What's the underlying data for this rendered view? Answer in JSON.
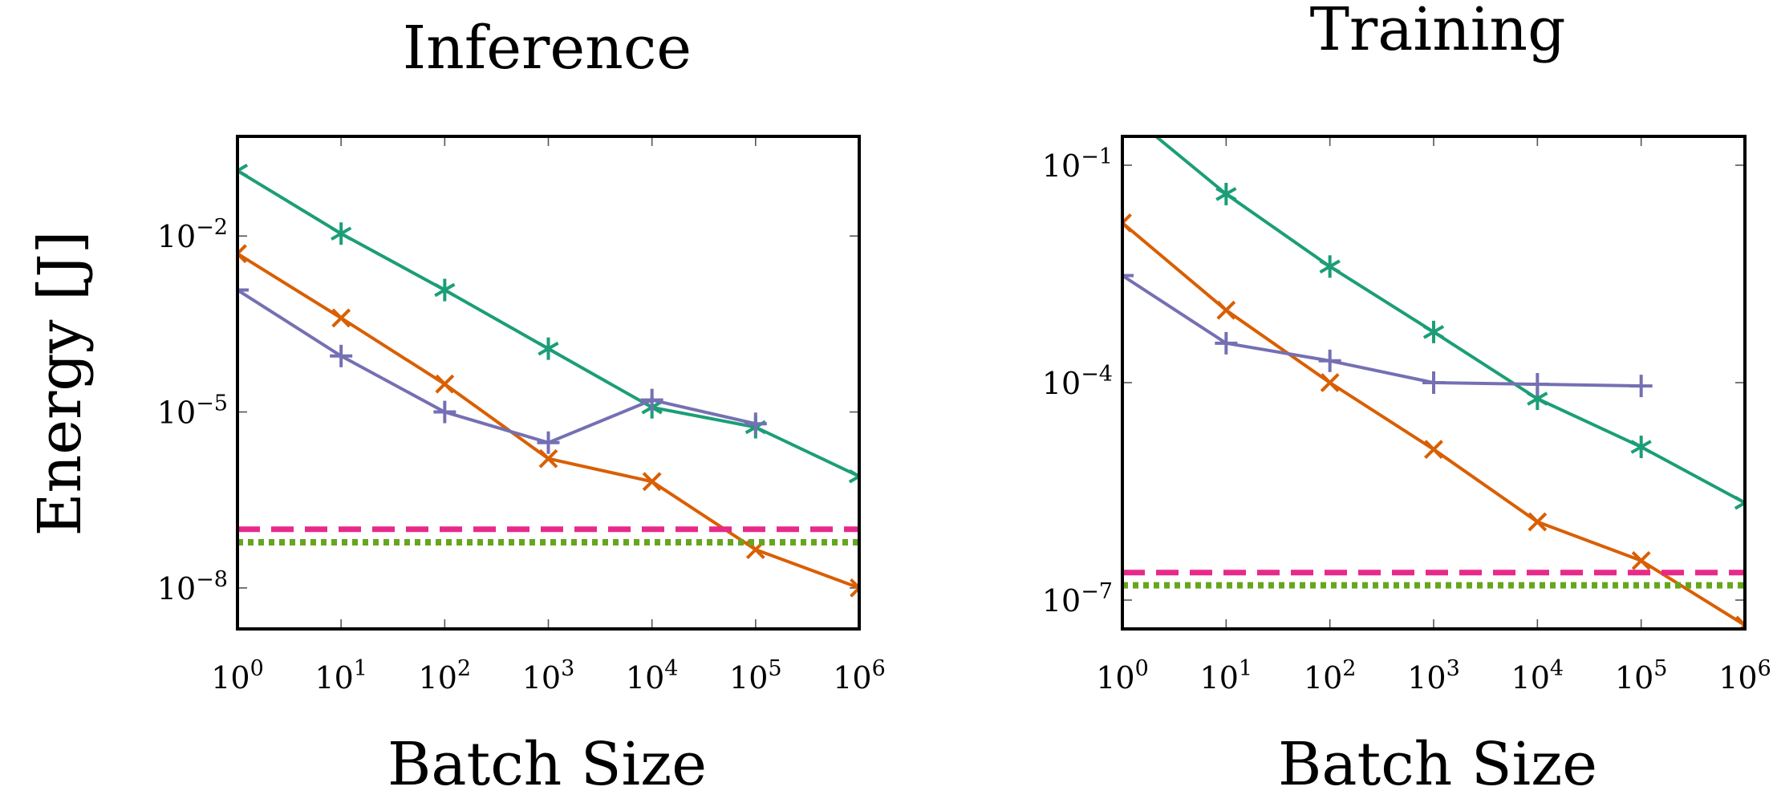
{
  "chart_data": [
    {
      "type": "line",
      "title": "Inference",
      "xlabel": "Batch Size",
      "ylabel": "Energy [J]",
      "xscale": "log",
      "yscale": "log",
      "xlim": [
        1,
        1000000
      ],
      "ylim": [
        2e-09,
        0.5
      ],
      "xticks": [
        {
          "base": "10",
          "exp": "0",
          "value": 1
        },
        {
          "base": "10",
          "exp": "1",
          "value": 10
        },
        {
          "base": "10",
          "exp": "2",
          "value": 100
        },
        {
          "base": "10",
          "exp": "3",
          "value": 1000
        },
        {
          "base": "10",
          "exp": "4",
          "value": 10000
        },
        {
          "base": "10",
          "exp": "5",
          "value": 100000
        },
        {
          "base": "10",
          "exp": "6",
          "value": 1000000
        }
      ],
      "yticks": [
        {
          "base": "10",
          "exp": "−2",
          "value": 0.01
        },
        {
          "base": "10",
          "exp": "−5",
          "value": 1e-05
        },
        {
          "base": "10",
          "exp": "−8",
          "value": 1e-08
        }
      ],
      "grid": false,
      "series": [
        {
          "color": "#1b9e77",
          "marker": "asterisk",
          "x": [
            1,
            10,
            100,
            1000,
            10000,
            100000,
            1000000
          ],
          "y": [
            0.13,
            0.011,
            0.0012,
            0.00012,
            1.2e-05,
            5.5e-06,
            8e-07
          ]
        },
        {
          "color": "#d95f02",
          "marker": "x",
          "x": [
            1,
            10,
            100,
            1000,
            10000,
            100000,
            1000000
          ],
          "y": [
            0.005,
            0.0004,
            3e-05,
            1.6e-06,
            6.5e-07,
            4.5e-08,
            1e-08
          ]
        },
        {
          "color": "#7570b3",
          "marker": "plus",
          "x": [
            1,
            10,
            100,
            1000,
            10000,
            100000
          ],
          "y": [
            0.0012,
            9e-05,
            1e-05,
            3e-06,
            1.6e-05,
            6.3e-06
          ]
        },
        {
          "color": "#e7298a",
          "style": "dashed",
          "y": 1e-07
        },
        {
          "color": "#66a61e",
          "style": "dotted",
          "y": 6e-08
        }
      ]
    },
    {
      "type": "line",
      "title": "Training",
      "xlabel": "Batch Size",
      "ylabel": "",
      "xscale": "log",
      "yscale": "log",
      "xlim": [
        1,
        1000000
      ],
      "ylim": [
        4e-08,
        0.25
      ],
      "xticks": [
        {
          "base": "10",
          "exp": "0",
          "value": 1
        },
        {
          "base": "10",
          "exp": "1",
          "value": 10
        },
        {
          "base": "10",
          "exp": "2",
          "value": 100
        },
        {
          "base": "10",
          "exp": "3",
          "value": 1000
        },
        {
          "base": "10",
          "exp": "4",
          "value": 10000
        },
        {
          "base": "10",
          "exp": "5",
          "value": 100000
        },
        {
          "base": "10",
          "exp": "6",
          "value": 1000000
        }
      ],
      "yticks": [
        {
          "base": "10",
          "exp": "−1",
          "value": 0.1
        },
        {
          "base": "10",
          "exp": "−4",
          "value": 0.0001
        },
        {
          "base": "10",
          "exp": "−7",
          "value": 1e-07
        }
      ],
      "grid": false,
      "series": [
        {
          "color": "#1b9e77",
          "marker": "asterisk",
          "x": [
            1,
            10,
            100,
            1000,
            10000,
            100000,
            1000000
          ],
          "y": [
            0.6,
            0.04,
            0.004,
            0.0005,
            6e-05,
            1.3e-05,
            2.2e-06
          ]
        },
        {
          "color": "#d95f02",
          "marker": "x",
          "x": [
            1,
            10,
            100,
            1000,
            10000,
            100000,
            1000000
          ],
          "y": [
            0.016,
            0.001,
            0.0001,
            1.2e-05,
            1.2e-06,
            3.5e-07,
            4.5e-08
          ]
        },
        {
          "color": "#7570b3",
          "marker": "plus",
          "x": [
            1,
            10,
            100,
            1000,
            10000,
            100000
          ],
          "y": [
            0.003,
            0.00035,
            0.0002,
            0.0001,
            9.5e-05,
            9e-05
          ]
        },
        {
          "color": "#e7298a",
          "style": "dashed",
          "y": 2.4e-07
        },
        {
          "color": "#66a61e",
          "style": "dotted",
          "y": 1.6e-07
        }
      ]
    }
  ]
}
